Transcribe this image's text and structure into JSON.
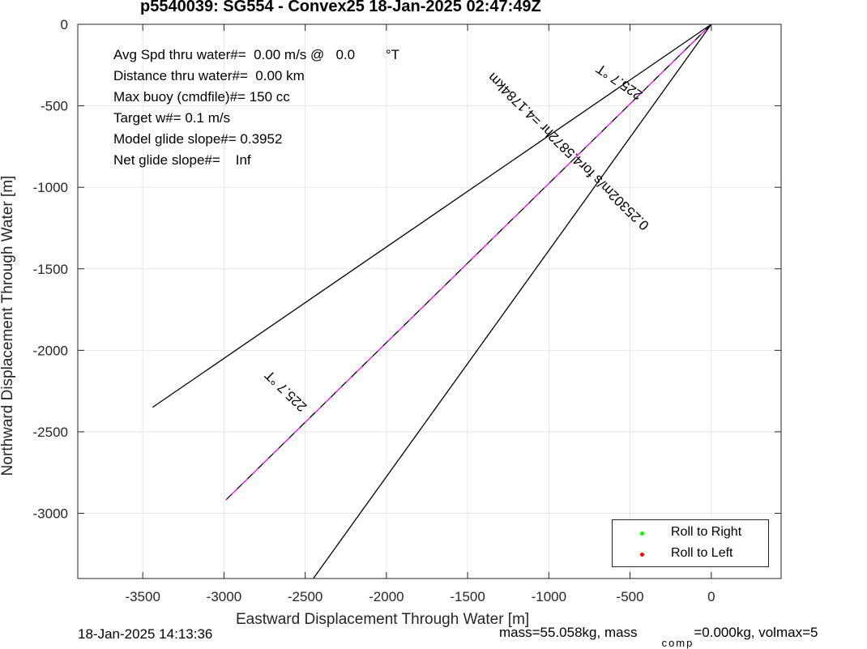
{
  "chart_data": {
    "type": "line",
    "title": "p5540039: SG554 - Convex25 18-Jan-2025 02:47:49Z",
    "xlabel": "Eastward Displacement Through Water [m]",
    "ylabel": "Northward Displacement Through Water [m]",
    "xlim": [
      -3900,
      430
    ],
    "ylim": [
      -3400,
      0
    ],
    "xticks": [
      -3500,
      -3000,
      -2500,
      -2000,
      -1500,
      -1000,
      -500,
      0
    ],
    "yticks": [
      0,
      -500,
      -1000,
      -1500,
      -2000,
      -2500,
      -3000
    ],
    "grid": true,
    "series": [
      {
        "line": "solid",
        "color": "#000000",
        "x": [
          0,
          -3440
        ],
        "y": [
          0,
          -2350
        ]
      },
      {
        "line": "solid",
        "color": "#000000",
        "x": [
          0,
          -2450
        ],
        "y": [
          0,
          -3400
        ]
      },
      {
        "line": "dashed",
        "color": "#000000",
        "x": [
          0,
          -2990
        ],
        "y": [
          0,
          -2920
        ]
      },
      {
        "line": "dashed",
        "color": "#ff00ff",
        "x": [
          0,
          -2990
        ],
        "y": [
          0,
          -2920
        ]
      }
    ],
    "annotations": [
      {
        "text": "225.7 °T",
        "x": -550,
        "y": -330,
        "angle": 214.33
      },
      {
        "text": "225.7 °T",
        "x": -2600,
        "y": -2230,
        "angle": 224.3
      },
      {
        "text": "0.25302m/s for4.5872hr =4.1784km",
        "x": -860,
        "y": -760,
        "angle": 224.3
      }
    ],
    "legend": {
      "position": "bottom-right",
      "entries": [
        {
          "label": "Roll to Right",
          "color": "#00ff00"
        },
        {
          "label": "Roll to Left",
          "color": "#ff0000"
        }
      ]
    }
  },
  "info_text": [
    "Avg Spd thru water#=  0.00 m/s @   0.0        °T",
    "Distance thru water#=  0.00 km",
    "Max buoy (cmdfile)#= 150 cc",
    "Target w#= 0.1 m/s",
    "Model glide slope#= 0.3952",
    "Net glide slope#=    Inf"
  ],
  "footer": {
    "timestamp": "18-Jan-2025 14:13:36",
    "mass_text": "mass=55.058kg, mass",
    "comp_subscript": "comp",
    "volmax_text": "=0.000kg, volmax=5"
  }
}
